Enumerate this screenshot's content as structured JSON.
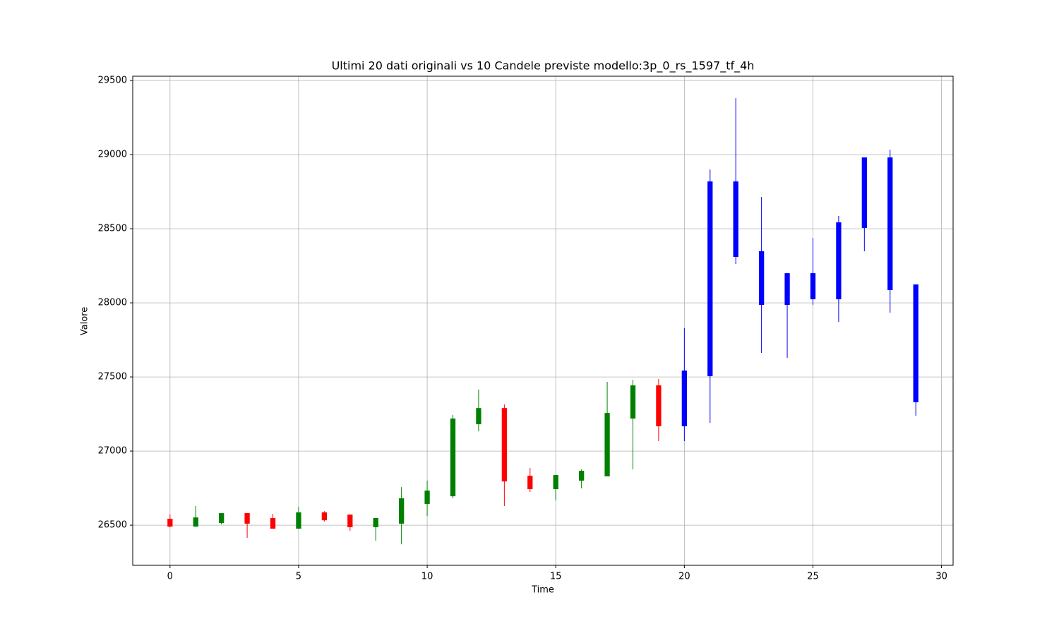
{
  "chart_data": {
    "type": "candlestick",
    "title": "Ultimi 20 dati originali vs 10 Candele previste modello:3p_0_rs_1597_tf_4h",
    "x_label": "Time",
    "y_label": "Valore",
    "xlim": [
      -1.45,
      30.45
    ],
    "ylim": [
      26229,
      29529
    ],
    "xticks": [
      0,
      5,
      10,
      15,
      20,
      25,
      30
    ],
    "yticks": [
      26500,
      27000,
      27500,
      28000,
      28500,
      29000,
      29500
    ],
    "grid": true,
    "series": [
      {
        "up_color": "green",
        "down_color": "red",
        "x": [
          0,
          1,
          2,
          3,
          4,
          5,
          6,
          7,
          8,
          9,
          10,
          11,
          12,
          13,
          14,
          15,
          16,
          17,
          18,
          19
        ],
        "open": [
          26543,
          26490,
          26514,
          26581,
          26548,
          26476,
          26586,
          26571,
          26486,
          26510,
          26643,
          26695,
          27181,
          27290,
          26833,
          26743,
          26800,
          26829,
          27219,
          27443
        ],
        "high": [
          26571,
          26629,
          26581,
          26581,
          26576,
          26624,
          26595,
          26571,
          26548,
          26757,
          26800,
          27243,
          27414,
          27314,
          26886,
          26838,
          26876,
          27467,
          27481,
          27486
        ],
        "low": [
          26486,
          26490,
          26505,
          26414,
          26476,
          26476,
          26524,
          26462,
          26395,
          26371,
          26562,
          26681,
          27133,
          26629,
          26724,
          26667,
          26748,
          26829,
          26876,
          27067
        ],
        "close": [
          26490,
          26552,
          26581,
          26510,
          26476,
          26586,
          26533,
          26486,
          26548,
          26681,
          26733,
          27219,
          27290,
          26795,
          26743,
          26838,
          26867,
          27257,
          27443,
          27167
        ]
      },
      {
        "color": "blue",
        "x": [
          20,
          21,
          22,
          23,
          24,
          25,
          26,
          27,
          28,
          29
        ],
        "open": [
          27167,
          27505,
          28819,
          28348,
          27986,
          28200,
          28024,
          28505,
          28981,
          28124
        ],
        "high": [
          27829,
          28900,
          29381,
          28714,
          28200,
          28438,
          28586,
          28981,
          29033,
          28124
        ],
        "low": [
          27067,
          27190,
          28262,
          27662,
          27629,
          27986,
          27871,
          28348,
          27933,
          27238
        ],
        "close": [
          27543,
          28819,
          28310,
          27986,
          28200,
          28024,
          28543,
          28981,
          28086,
          27329
        ]
      }
    ]
  }
}
